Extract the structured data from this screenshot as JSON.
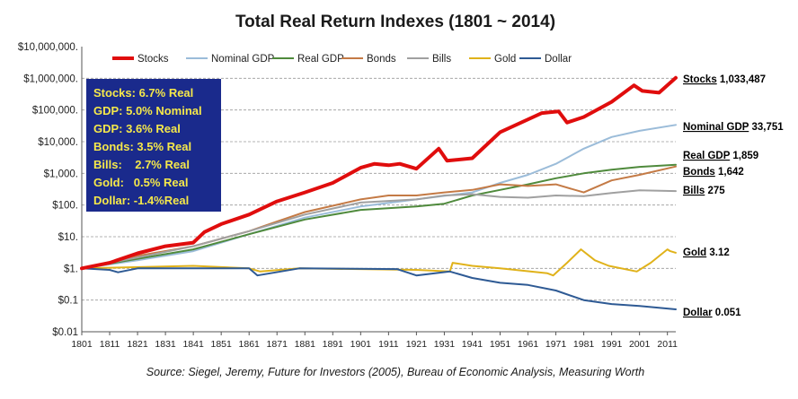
{
  "chart_data": {
    "type": "line",
    "title": "Total Real Return Indexes (1801 ~ 2014)",
    "source": "Source: Siegel, Jeremy, Future for Investors (2005), Bureau of Economic Analysis, Measuring Worth",
    "y_scale": "log",
    "ylim": [
      0.01,
      10000000
    ],
    "xlim": [
      1801,
      2014
    ],
    "y_tick_labels": [
      "$10,000,000.",
      "$1,000,000.",
      "$100,000.",
      "$10,000.",
      "$1,000.",
      "$100.",
      "$10.",
      "$1.",
      "$0.1",
      "$0.01"
    ],
    "x_tick_labels": [
      "1801",
      "1811",
      "1821",
      "1831",
      "1841",
      "1851",
      "1861",
      "1871",
      "1881",
      "1891",
      "1901",
      "1911",
      "1921",
      "1931",
      "1941",
      "1951",
      "1961",
      "1971",
      "1981",
      "1991",
      "2001",
      "2011"
    ],
    "grid": "horizontal dashed",
    "legend_position": "top",
    "annotation_box": [
      "Stocks: 6.7% Real",
      "GDP: 5.0% Nominal",
      "GDP: 3.6% Real",
      "Bonds: 3.5% Real",
      "Bills:    2.7% Real",
      "Gold:   0.5% Real",
      "Dollar: -1.4%Real"
    ],
    "series": [
      {
        "name": "Stocks",
        "color": "#e00d0d",
        "end_label": "Stocks",
        "end_value": "1,033,487",
        "x": [
          1801,
          1811,
          1821,
          1831,
          1841,
          1845,
          1851,
          1861,
          1871,
          1881,
          1891,
          1901,
          1906,
          1911,
          1915,
          1921,
          1929,
          1932,
          1941,
          1951,
          1966,
          1972,
          1975,
          1981,
          1991,
          1999,
          2002,
          2008,
          2014
        ],
        "y": [
          1,
          1.5,
          3,
          5,
          6.5,
          14,
          25,
          50,
          130,
          250,
          500,
          1500,
          2000,
          1800,
          2000,
          1400,
          6000,
          2500,
          3000,
          20000,
          80000,
          90000,
          40000,
          60000,
          180000,
          600000,
          400000,
          350000,
          1033487
        ]
      },
      {
        "name": "Nominal GDP",
        "color": "#9bbcd9",
        "end_label": "Nominal GDP",
        "end_value": "33,751",
        "x": [
          1801,
          1821,
          1841,
          1861,
          1881,
          1901,
          1921,
          1941,
          1951,
          1961,
          1971,
          1981,
          1991,
          2001,
          2014
        ],
        "y": [
          1,
          1.8,
          3.5,
          12,
          40,
          90,
          150,
          250,
          500,
          900,
          2000,
          6000,
          14000,
          22000,
          33751
        ]
      },
      {
        "name": "Real GDP",
        "color": "#4f8a3c",
        "end_label": "Real GDP",
        "end_value": "1,859",
        "x": [
          1801,
          1821,
          1841,
          1861,
          1881,
          1901,
          1921,
          1931,
          1941,
          1951,
          1961,
          1971,
          1981,
          1991,
          2001,
          2014
        ],
        "y": [
          1,
          2,
          4,
          12,
          35,
          70,
          90,
          110,
          200,
          300,
          450,
          700,
          1000,
          1300,
          1600,
          1859
        ]
      },
      {
        "name": "Bonds",
        "color": "#c47a45",
        "end_label": "Bonds",
        "end_value": "1,642",
        "x": [
          1801,
          1821,
          1841,
          1861,
          1871,
          1881,
          1901,
          1911,
          1921,
          1931,
          1941,
          1951,
          1961,
          1971,
          1981,
          1991,
          2001,
          2014
        ],
        "y": [
          1,
          2.5,
          5,
          15,
          30,
          60,
          150,
          200,
          200,
          250,
          300,
          450,
          400,
          450,
          250,
          600,
          900,
          1642
        ]
      },
      {
        "name": "Bills",
        "color": "#a0a0a0",
        "end_label": "Bills",
        "end_value": "275",
        "x": [
          1801,
          1821,
          1841,
          1861,
          1881,
          1901,
          1921,
          1931,
          1941,
          1951,
          1961,
          1971,
          1981,
          1991,
          2001,
          2014
        ],
        "y": [
          1,
          2.2,
          5,
          15,
          50,
          120,
          150,
          200,
          220,
          180,
          170,
          200,
          190,
          240,
          290,
          275
        ]
      },
      {
        "name": "Gold",
        "color": "#e0b21a",
        "end_label": "Gold",
        "end_value": "3.12",
        "x": [
          1801,
          1841,
          1861,
          1865,
          1879,
          1921,
          1933,
          1934,
          1941,
          1951,
          1968,
          1970,
          1975,
          1980,
          1985,
          1990,
          2000,
          2005,
          2011,
          2012,
          2014
        ],
        "y": [
          1,
          1.2,
          1,
          0.8,
          1,
          0.9,
          0.8,
          1.5,
          1.2,
          1,
          0.7,
          0.6,
          1.5,
          4,
          1.8,
          1.2,
          0.8,
          1.5,
          4,
          3.5,
          3.12
        ]
      },
      {
        "name": "Dollar",
        "color": "#2e5a94",
        "end_label": "Dollar",
        "end_value": "0.051",
        "x": [
          1801,
          1811,
          1814,
          1821,
          1861,
          1864,
          1879,
          1914,
          1921,
          1933,
          1941,
          1951,
          1961,
          1971,
          1981,
          1991,
          2001,
          2014
        ],
        "y": [
          1,
          0.9,
          0.75,
          1,
          1,
          0.6,
          1,
          0.95,
          0.6,
          0.8,
          0.5,
          0.35,
          0.3,
          0.2,
          0.1,
          0.075,
          0.065,
          0.051
        ]
      }
    ]
  }
}
